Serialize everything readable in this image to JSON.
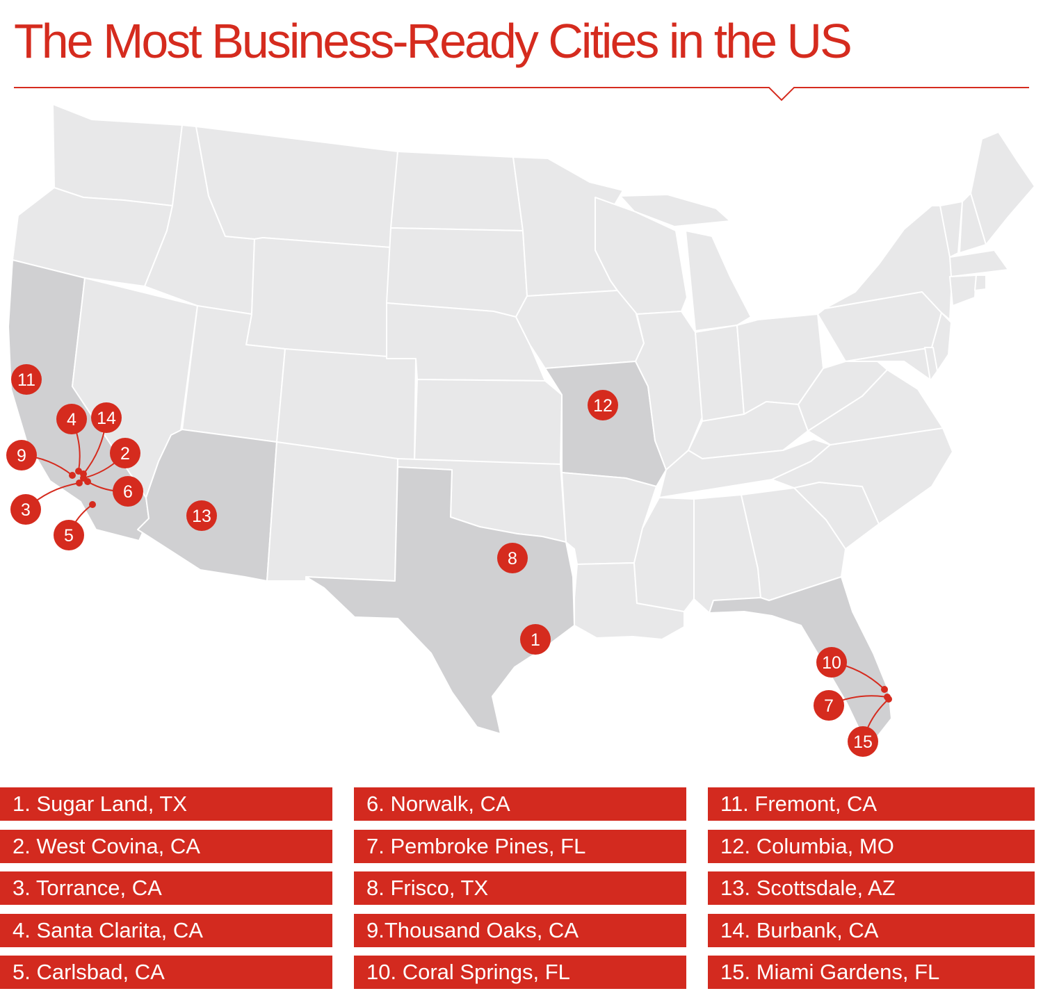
{
  "title": "The Most Business-Ready Cities in the US",
  "colors": {
    "accent": "#d52b1e",
    "land": "#e8e8e9",
    "highlighted_state": "#d0d0d2",
    "state_border": "#ffffff",
    "legend_bg": "#d32a1f"
  },
  "highlighted_states": [
    "CA",
    "AZ",
    "TX",
    "MO",
    "FL"
  ],
  "markers": [
    {
      "label": "1"
    },
    {
      "label": "2"
    },
    {
      "label": "3"
    },
    {
      "label": "4"
    },
    {
      "label": "5"
    },
    {
      "label": "6"
    },
    {
      "label": "7"
    },
    {
      "label": "8"
    },
    {
      "label": "9"
    },
    {
      "label": "10"
    },
    {
      "label": "11"
    },
    {
      "label": "12"
    },
    {
      "label": "13"
    },
    {
      "label": "14"
    },
    {
      "label": "15"
    }
  ],
  "legend": [
    "1. Sugar Land, TX",
    "2. West Covina, CA",
    "3. Torrance, CA",
    "4. Santa Clarita, CA",
    "5. Carlsbad, CA",
    "6. Norwalk, CA",
    "7. Pembroke Pines, FL",
    "8. Frisco, TX",
    "9.Thousand Oaks, CA",
    "10. Coral Springs, FL",
    "11. Fremont, CA",
    "12. Columbia, MO",
    "13. Scottsdale, AZ",
    "14. Burbank, CA",
    "15. Miami Gardens, FL"
  ]
}
